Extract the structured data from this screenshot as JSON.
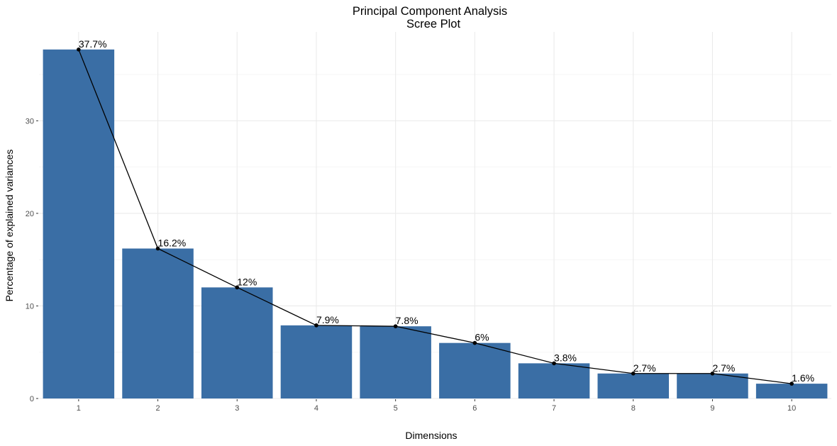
{
  "chart_data": {
    "type": "bar",
    "title": "Principal Component Analysis",
    "subtitle": "Scree Plot",
    "xlabel": "Dimensions",
    "ylabel": "Percentage of explained variances",
    "categories": [
      "1",
      "2",
      "3",
      "4",
      "5",
      "6",
      "7",
      "8",
      "9",
      "10"
    ],
    "values": [
      37.7,
      16.2,
      12.0,
      7.9,
      7.8,
      6.0,
      3.8,
      2.7,
      2.7,
      1.6
    ],
    "data_labels": [
      "37.7%",
      "16.2%",
      "12%",
      "7.9%",
      "7.8%",
      "6%",
      "3.8%",
      "2.7%",
      "2.7%",
      "1.6%"
    ],
    "ylim": [
      0,
      39.6
    ],
    "yticks": [
      0,
      10,
      20,
      30
    ],
    "grid": true,
    "line_overlay": true,
    "colors": {
      "bar": "#3A6EA5",
      "line": "#000000"
    }
  }
}
